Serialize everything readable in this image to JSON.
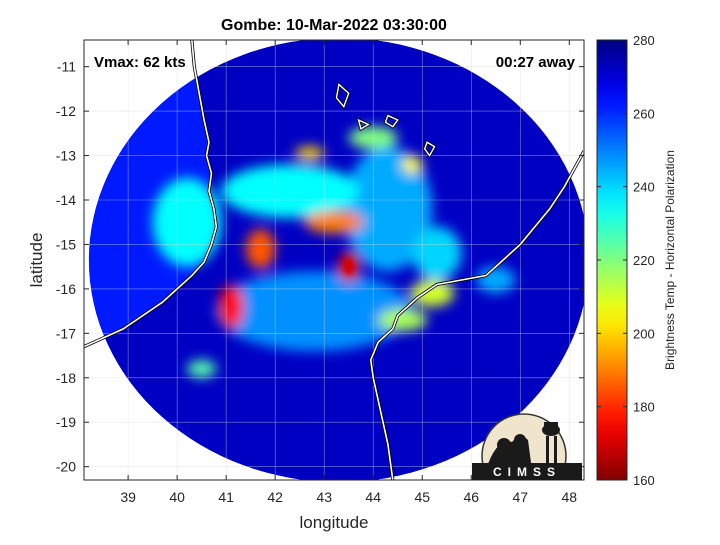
{
  "chart_data": {
    "type": "heatmap",
    "title": "Gombe: 10-Mar-2022 03:30:00",
    "xlabel": "longitude",
    "ylabel": "latitude",
    "xlim": [
      38.1,
      48.3
    ],
    "ylim": [
      -20.3,
      -10.4
    ],
    "xticks": [
      39,
      40,
      41,
      42,
      43,
      44,
      45,
      46,
      47,
      48
    ],
    "yticks": [
      -11,
      -12,
      -13,
      -14,
      -15,
      -16,
      -17,
      -18,
      -19,
      -20
    ],
    "xtick_labels": [
      "39",
      "40",
      "41",
      "42",
      "43",
      "44",
      "45",
      "46",
      "47",
      "48"
    ],
    "ytick_labels": [
      "-11",
      "-12",
      "-13",
      "-14",
      "-15",
      "-16",
      "-17",
      "-18",
      "-19",
      "-20"
    ],
    "grid": true,
    "annotations": {
      "vmax": "Vmax: 62 kts",
      "away": "00:27 away"
    },
    "colorbar": {
      "label": "Brightness Temp - Horizontal Polarization",
      "range": [
        160,
        280
      ],
      "ticks": [
        160,
        180,
        200,
        220,
        240,
        260,
        280
      ],
      "tick_labels": [
        "160",
        "180",
        "200",
        "220",
        "240",
        "260",
        "280"
      ],
      "colormap": "jet"
    },
    "storm_center": {
      "lon": 43.5,
      "lat": -15.4
    },
    "swath": {
      "center_lon": 43.3,
      "center_lat": -15.35,
      "radius_lon": 5.1,
      "radius_lat": 5.0
    },
    "warm_features": [
      {
        "lon": 43.5,
        "lat": -15.5,
        "rx": 0.22,
        "ry": 0.35,
        "tb": 170
      },
      {
        "lon": 41.1,
        "lat": -16.4,
        "rx": 0.25,
        "ry": 0.5,
        "tb": 175
      },
      {
        "lon": 41.7,
        "lat": -15.1,
        "rx": 0.3,
        "ry": 0.45,
        "tb": 185
      },
      {
        "lon": 43.2,
        "lat": -14.5,
        "rx": 0.6,
        "ry": 0.25,
        "tb": 190
      },
      {
        "lon": 42.7,
        "lat": -12.95,
        "rx": 0.3,
        "ry": 0.15,
        "tb": 200
      },
      {
        "lon": 45.2,
        "lat": -16.1,
        "rx": 0.45,
        "ry": 0.3,
        "tb": 210
      },
      {
        "lon": 44.6,
        "lat": -16.7,
        "rx": 0.5,
        "ry": 0.25,
        "tb": 215
      },
      {
        "lon": 44.0,
        "lat": -12.6,
        "rx": 0.5,
        "ry": 0.25,
        "tb": 220
      },
      {
        "lon": 44.8,
        "lat": -13.2,
        "rx": 0.2,
        "ry": 0.2,
        "tb": 205
      },
      {
        "lon": 40.2,
        "lat": -14.5,
        "rx": 0.7,
        "ry": 1.0,
        "tb": 235
      },
      {
        "lon": 42.3,
        "lat": -13.8,
        "rx": 1.4,
        "ry": 0.6,
        "tb": 235
      },
      {
        "lon": 44.3,
        "lat": -14.2,
        "rx": 0.9,
        "ry": 1.4,
        "tb": 245
      },
      {
        "lon": 42.8,
        "lat": -16.5,
        "rx": 2.0,
        "ry": 0.9,
        "tb": 248
      },
      {
        "lon": 40.5,
        "lat": -17.8,
        "rx": 0.3,
        "ry": 0.2,
        "tb": 225
      },
      {
        "lon": 45.3,
        "lat": -15.2,
        "rx": 0.5,
        "ry": 0.6,
        "tb": 240
      },
      {
        "lon": 46.5,
        "lat": -15.8,
        "rx": 0.4,
        "ry": 0.3,
        "tb": 245
      }
    ],
    "land_tb": 262,
    "ocean_tb": 272,
    "coastline_lonlat": [
      [
        40.3,
        -10.4
      ],
      [
        40.35,
        -11.0
      ],
      [
        40.45,
        -11.6
      ],
      [
        40.55,
        -12.2
      ],
      [
        40.65,
        -12.7
      ],
      [
        40.6,
        -13.0
      ],
      [
        40.7,
        -13.4
      ],
      [
        40.65,
        -13.8
      ],
      [
        40.75,
        -14.2
      ],
      [
        40.8,
        -14.6
      ],
      [
        40.7,
        -15.0
      ],
      [
        40.55,
        -15.4
      ],
      [
        40.3,
        -15.7
      ],
      [
        40.0,
        -16.0
      ],
      [
        39.7,
        -16.3
      ],
      [
        39.3,
        -16.6
      ],
      [
        38.9,
        -16.9
      ],
      [
        38.5,
        -17.1
      ],
      [
        38.1,
        -17.3
      ]
    ],
    "madagascar_lonlat": [
      [
        48.3,
        -12.9
      ],
      [
        48.1,
        -13.3
      ],
      [
        47.9,
        -13.7
      ],
      [
        47.6,
        -14.2
      ],
      [
        47.3,
        -14.6
      ],
      [
        47.0,
        -15.0
      ],
      [
        46.6,
        -15.4
      ],
      [
        46.3,
        -15.7
      ],
      [
        45.8,
        -15.8
      ],
      [
        45.3,
        -15.9
      ],
      [
        44.9,
        -16.2
      ],
      [
        44.5,
        -16.6
      ],
      [
        44.4,
        -16.9
      ],
      [
        44.1,
        -17.2
      ],
      [
        43.95,
        -17.6
      ],
      [
        44.0,
        -18.0
      ],
      [
        44.1,
        -18.5
      ],
      [
        44.2,
        -19.0
      ],
      [
        44.3,
        -19.5
      ],
      [
        44.4,
        -20.3
      ]
    ],
    "comoros_lonlat": [
      [
        [
          43.3,
          -11.4
        ],
        [
          43.5,
          -11.6
        ],
        [
          43.4,
          -11.9
        ],
        [
          43.25,
          -11.7
        ]
      ],
      [
        [
          43.7,
          -12.2
        ],
        [
          43.9,
          -12.3
        ],
        [
          43.75,
          -12.4
        ]
      ],
      [
        [
          44.3,
          -12.1
        ],
        [
          44.5,
          -12.2
        ],
        [
          44.4,
          -12.35
        ],
        [
          44.25,
          -12.25
        ]
      ],
      [
        [
          45.1,
          -12.7
        ],
        [
          45.25,
          -12.8
        ],
        [
          45.15,
          -13.0
        ],
        [
          45.05,
          -12.85
        ]
      ]
    ]
  },
  "logo": {
    "text": "CIMSS"
  }
}
